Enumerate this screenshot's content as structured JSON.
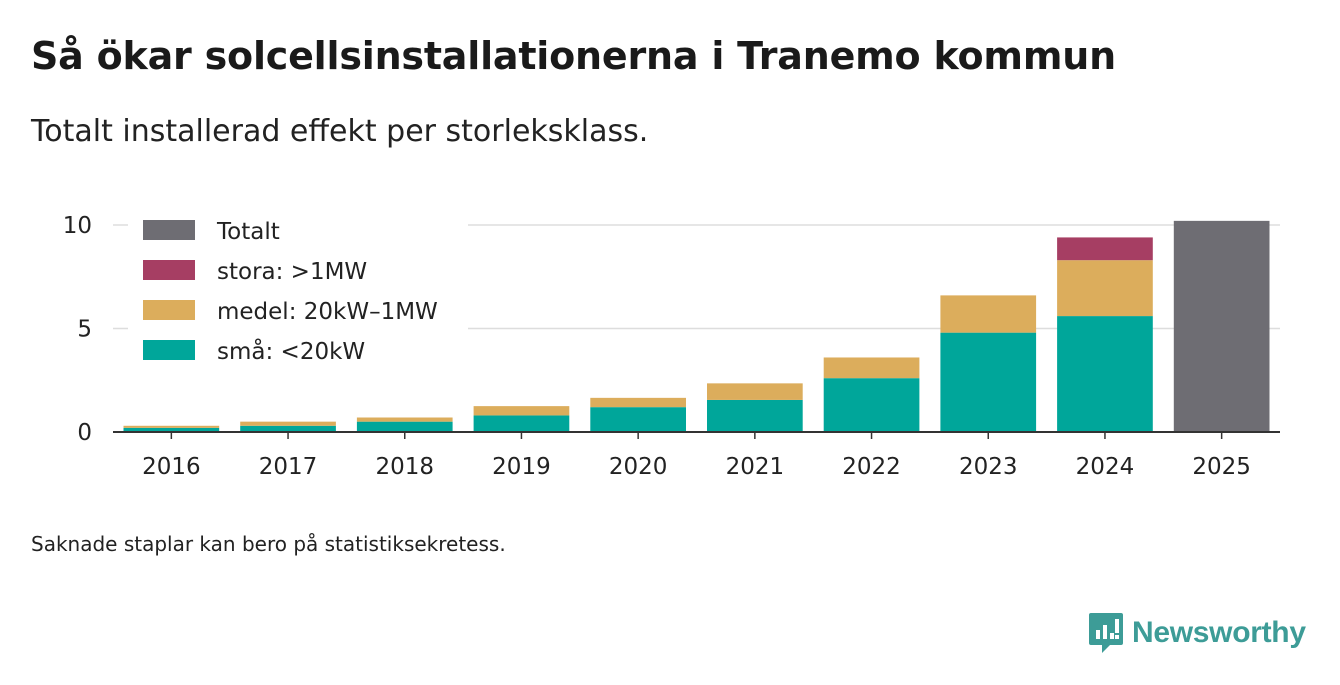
{
  "header": {
    "title": "Så ökar solcellsinstallationerna i Tranemo kommun",
    "subtitle": "Totalt installerad effekt per storleksklass."
  },
  "footer": {
    "note": "Saknade staplar kan bero på statistiksekretess.",
    "brand": "Newsworthy"
  },
  "colors": {
    "totalt": "#6e6d73",
    "stora": "#a63e63",
    "medel": "#dcad5c",
    "sma": "#00a69a",
    "brand": "#3d9c97",
    "axis": "#333333",
    "grid": "#dddddd"
  },
  "chart_data": {
    "type": "bar",
    "stacked": true,
    "title": "Så ökar solcellsinstallationerna i Tranemo kommun",
    "subtitle": "Totalt installerad effekt per storleksklass.",
    "xlabel": "",
    "ylabel": "",
    "ylim": [
      0,
      10.5
    ],
    "yticks": [
      0,
      5,
      10
    ],
    "grid": true,
    "legend_position": "top-left",
    "categories": [
      "2016",
      "2017",
      "2018",
      "2019",
      "2020",
      "2021",
      "2022",
      "2023",
      "2024",
      "2025"
    ],
    "series": [
      {
        "key": "sma",
        "name": "små: <20kW",
        "values": [
          0.2,
          0.3,
          0.5,
          0.8,
          1.2,
          1.55,
          2.6,
          4.8,
          5.6,
          null
        ]
      },
      {
        "key": "medel",
        "name": "medel: 20kW–1MW",
        "values": [
          0.1,
          0.2,
          0.2,
          0.45,
          0.45,
          0.8,
          1.0,
          1.8,
          2.7,
          null
        ]
      },
      {
        "key": "stora",
        "name": "stora: >1MW",
        "values": [
          null,
          null,
          null,
          null,
          null,
          null,
          null,
          null,
          1.1,
          null
        ]
      },
      {
        "key": "totalt",
        "name": "Totalt",
        "values": [
          null,
          null,
          null,
          null,
          null,
          null,
          null,
          null,
          null,
          10.2
        ]
      }
    ],
    "legend_order": [
      "totalt",
      "stora",
      "medel",
      "sma"
    ]
  }
}
